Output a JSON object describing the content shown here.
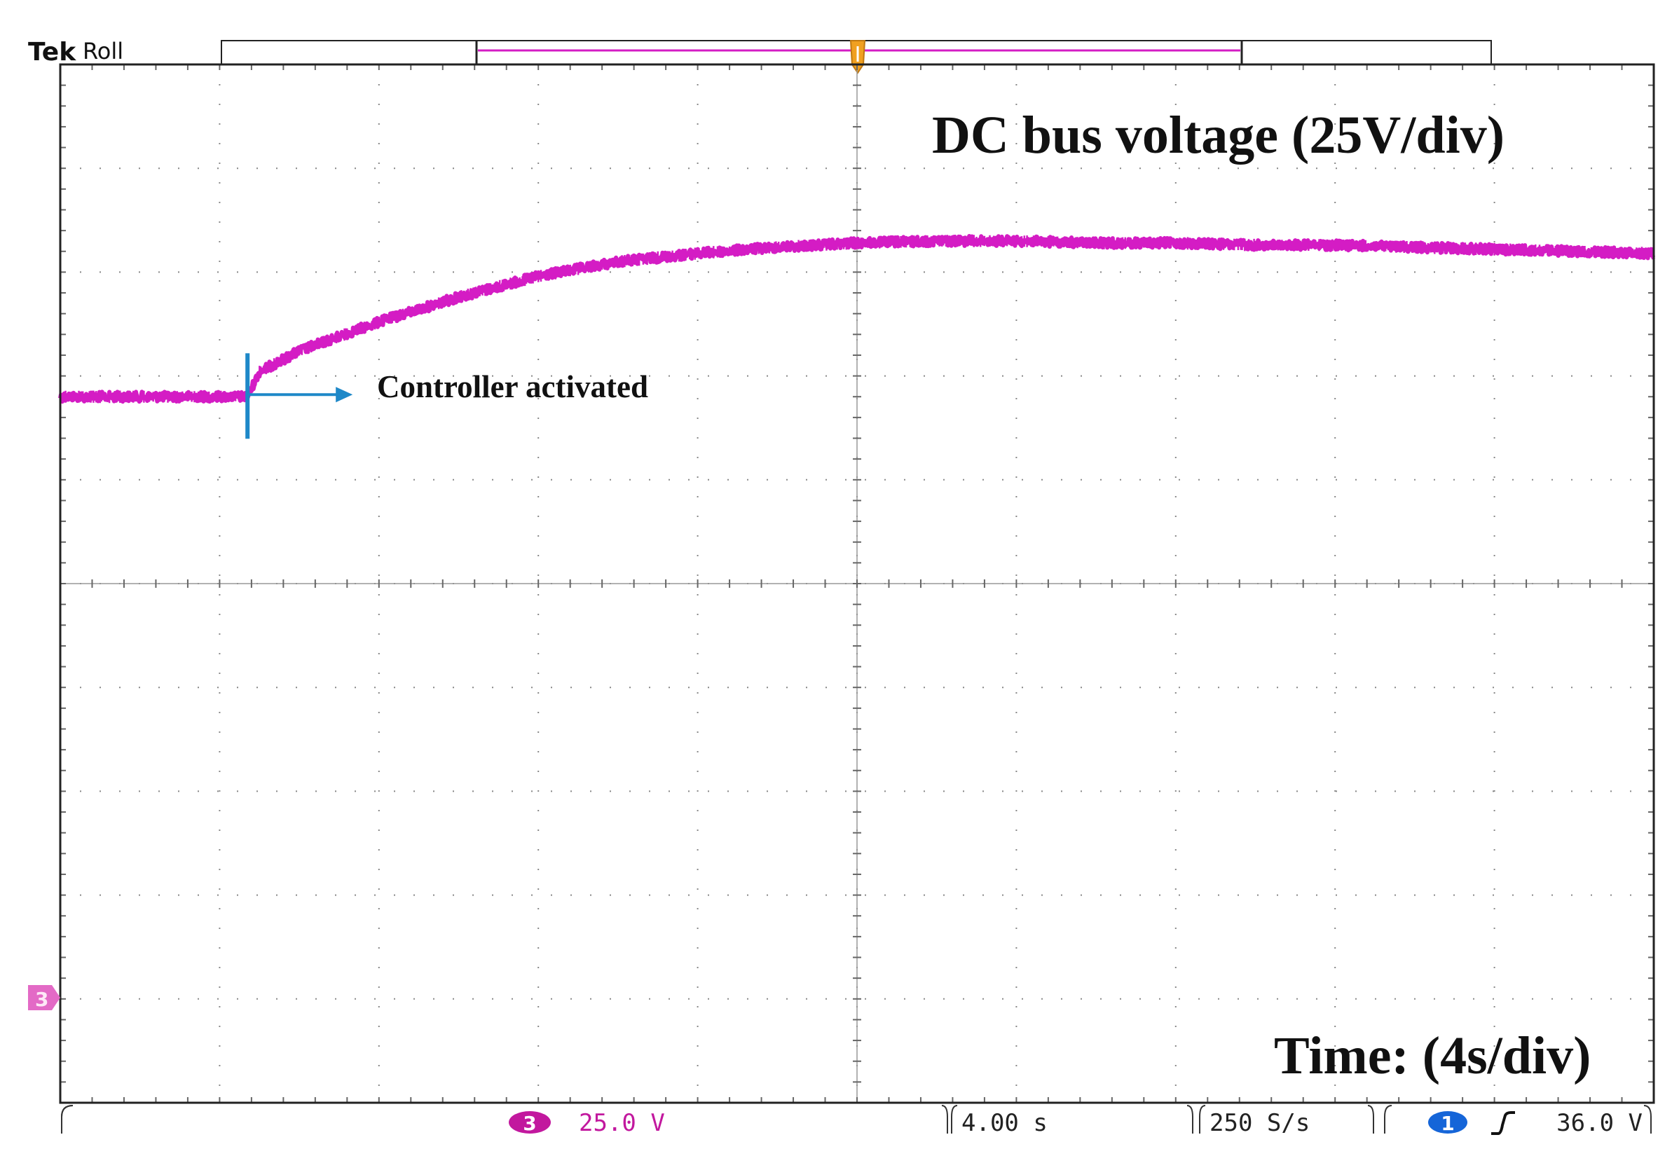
{
  "header": {
    "brand": "Tek",
    "mode": "Roll"
  },
  "annotations": {
    "title": "DC bus voltage (25V/div)",
    "time_label": "Time: (4s/div)",
    "event_label": "Controller activated"
  },
  "status_bar": {
    "channel_badge": "3",
    "channel_scale": "25.0 V",
    "timebase": "4.00 s",
    "sample_rate": "250 S/s",
    "trigger_badge": "1",
    "trigger_slope_icon": "rising-edge-icon",
    "trigger_level": "36.0 V"
  },
  "ground_marker": "3",
  "colors": {
    "trace": "#d41cc4",
    "channel_badge": "#c2189e",
    "marker": "#e36ac6",
    "trigger_badge": "#1565d8",
    "annotation_arrow": "#1e88c8",
    "trigger_pointer": "#f0a020"
  },
  "chart_data": {
    "type": "line",
    "title": "DC bus voltage (25V/div)",
    "xlabel": "Time: (4s/div)",
    "ylabel": "",
    "x_unit": "s",
    "y_unit": "V",
    "x_divisions": 10,
    "y_divisions": 10,
    "x_per_div": 4,
    "y_per_div": 25,
    "xlim": [
      0,
      40
    ],
    "ylim": [
      -200,
      50
    ],
    "grid": true,
    "ground_level": -175,
    "event_time": 4.7,
    "series": [
      {
        "x": [
          0,
          2,
          4,
          4.7,
          5.0,
          6,
          8,
          10,
          12,
          14,
          16,
          18,
          20,
          22,
          24,
          26,
          28,
          30,
          32,
          34,
          36,
          38,
          40
        ],
        "y": [
          -30,
          -30,
          -30,
          -30,
          -24,
          -19,
          -12,
          -6,
          -1,
          2.5,
          4.5,
          6,
          7,
          7.5,
          7.5,
          7,
          7,
          6.5,
          6.5,
          6,
          5.5,
          5,
          4.5
        ]
      }
    ]
  }
}
